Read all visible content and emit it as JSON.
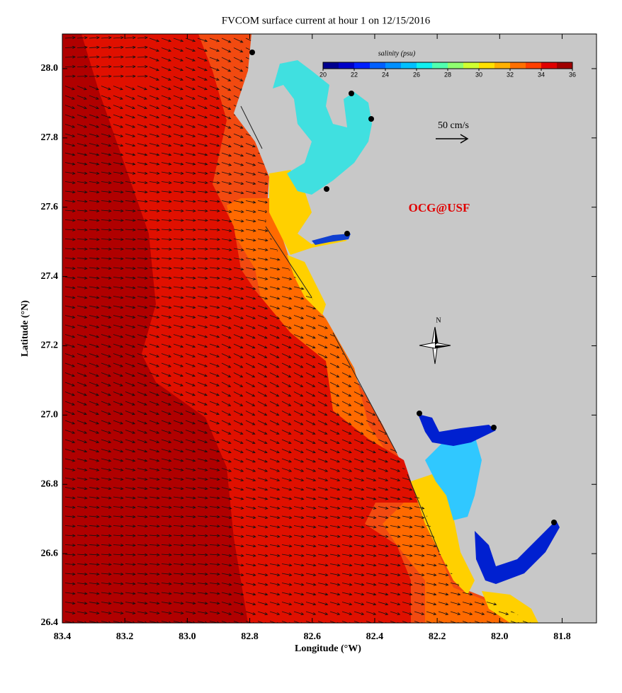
{
  "chart_data": {
    "type": "map",
    "title": "FVCOM surface current at hour 1 on 12/15/2016",
    "xlabel": "Longitude (°W)",
    "ylabel": "Latitude (°N)",
    "xlim": [
      83.4,
      81.69
    ],
    "ylim": [
      26.4,
      28.1
    ],
    "xticks": [
      83.4,
      83.2,
      {
        "value": 83,
        "label": "83.0"
      },
      82.8,
      82.6,
      82.4,
      82.2,
      {
        "value": 82,
        "label": "82.0"
      },
      81.8
    ],
    "yticks": [
      26.4,
      26.6,
      26.8,
      {
        "value": 27,
        "label": "27.0"
      },
      27.2,
      27.4,
      27.6,
      27.8,
      {
        "value": 28,
        "label": "28.0"
      }
    ],
    "colorbar": {
      "title": "salinity (psu)",
      "range": [
        20,
        36
      ],
      "ticks": [
        20,
        22,
        24,
        26,
        28,
        30,
        32,
        34,
        36
      ],
      "colors": [
        "#00008f",
        "#0000c8",
        "#0020ff",
        "#0060ff",
        "#0090ff",
        "#00c0ff",
        "#10f0f0",
        "#50ffb0",
        "#90ff70",
        "#d0ff30",
        "#ffe000",
        "#ffb000",
        "#ff7000",
        "#ff4000",
        "#e00000",
        "#a00000"
      ]
    },
    "annotations": {
      "scale": "50 cm/s",
      "credit": "OCG@USF",
      "north": "N"
    }
  }
}
